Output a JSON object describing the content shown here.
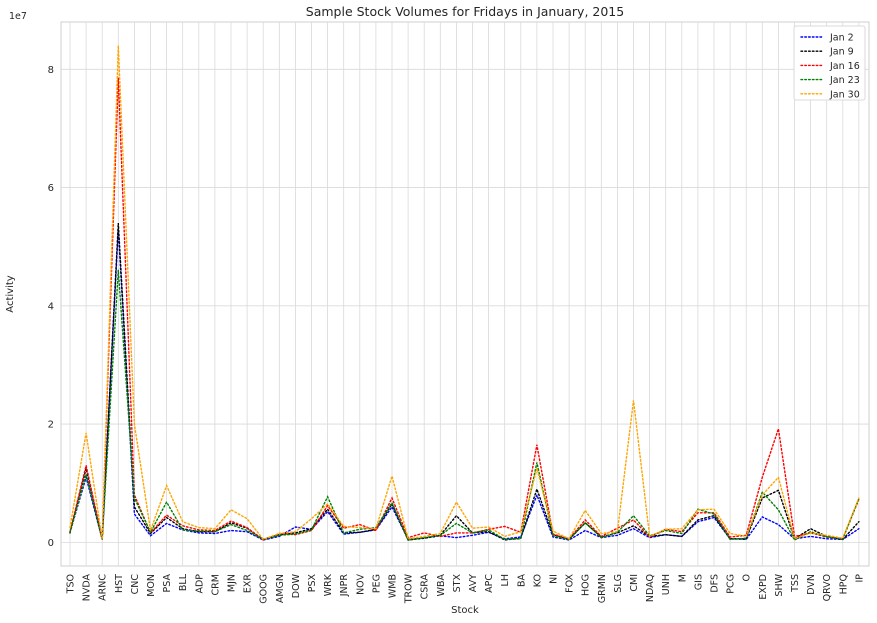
{
  "chart_data": {
    "type": "line",
    "title": "Sample Stock Volumes for Fridays in January, 2015",
    "xlabel": "Stock",
    "ylabel": "Activity",
    "y_offset_label": "1e7",
    "ylim": [
      -4000000,
      88000000
    ],
    "yticks": [
      0,
      20000000,
      40000000,
      60000000,
      80000000
    ],
    "ytick_labels": [
      "0",
      "2",
      "4",
      "6",
      "8"
    ],
    "grid": true,
    "legend_position": "top-right",
    "categories": [
      "TSO",
      "NVDA",
      "ARNC",
      "HST",
      "CNC",
      "MON",
      "PSA",
      "BLL",
      "ADP",
      "CRM",
      "MJN",
      "EXR",
      "GOOG",
      "AMGN",
      "DOW",
      "PSX",
      "WRK",
      "JNPR",
      "NOV",
      "PEG",
      "WMB",
      "TROW",
      "CSRA",
      "WBA",
      "STX",
      "AVY",
      "APC",
      "LH",
      "BA",
      "KO",
      "NI",
      "FOX",
      "HOG",
      "GRMN",
      "SLG",
      "CMI",
      "NDAQ",
      "UNH",
      "M",
      "GIS",
      "DFS",
      "PCG",
      "O",
      "EXPD",
      "SHW",
      "TSS",
      "DVN",
      "QRVO",
      "HPQ",
      "IP"
    ],
    "series": [
      {
        "name": "Jan 2",
        "color": "#0000ff",
        "values": [
          1.7,
          11.0,
          0.5,
          53.0,
          4.8,
          1.1,
          3.2,
          2.1,
          1.6,
          1.5,
          2.0,
          1.8,
          0.4,
          1.0,
          2.6,
          2.2,
          5.2,
          1.4,
          1.7,
          2.1,
          6.0,
          0.5,
          0.7,
          1.1,
          0.8,
          1.2,
          1.7,
          0.6,
          0.9,
          8.0,
          0.9,
          0.4,
          2.0,
          0.8,
          1.2,
          2.3,
          0.8,
          1.3,
          1.0,
          3.5,
          4.2,
          0.6,
          0.5,
          4.3,
          3.0,
          0.6,
          1.0,
          0.6,
          0.5,
          2.3
        ]
      },
      {
        "name": "Jan 9",
        "color": "#000000",
        "values": [
          1.6,
          12.5,
          0.5,
          54.0,
          6.0,
          1.5,
          4.2,
          2.3,
          1.8,
          1.8,
          3.3,
          2.4,
          0.5,
          1.3,
          1.6,
          2.3,
          5.6,
          1.6,
          1.7,
          2.2,
          6.5,
          0.4,
          0.7,
          1.2,
          4.5,
          1.6,
          1.8,
          0.4,
          0.7,
          9.0,
          1.3,
          0.5,
          3.3,
          0.9,
          1.6,
          2.8,
          1.0,
          1.3,
          1.0,
          3.8,
          4.5,
          0.6,
          0.6,
          7.5,
          8.8,
          0.6,
          2.3,
          1.0,
          0.5,
          3.5
        ]
      },
      {
        "name": "Jan 16",
        "color": "#ff0000",
        "values": [
          1.8,
          13.0,
          0.6,
          78.5,
          8.0,
          1.6,
          4.6,
          2.8,
          2.1,
          2.0,
          3.6,
          2.5,
          0.4,
          1.5,
          1.3,
          2.0,
          6.2,
          2.4,
          3.0,
          2.0,
          7.5,
          0.8,
          1.6,
          1.0,
          1.6,
          1.6,
          2.2,
          2.7,
          1.7,
          16.5,
          1.4,
          0.6,
          3.8,
          1.0,
          2.4,
          3.8,
          0.9,
          2.2,
          1.8,
          5.0,
          5.0,
          0.9,
          1.2,
          11.0,
          19.2,
          1.0,
          1.6,
          0.9,
          0.6,
          7.3
        ]
      },
      {
        "name": "Jan 23",
        "color": "#008000",
        "values": [
          1.7,
          11.5,
          0.5,
          46.0,
          7.5,
          1.7,
          6.8,
          2.1,
          1.9,
          1.8,
          3.0,
          2.0,
          0.5,
          1.2,
          1.4,
          2.1,
          7.7,
          1.6,
          2.2,
          2.5,
          6.7,
          0.4,
          0.8,
          1.2,
          3.2,
          1.6,
          2.1,
          0.5,
          0.6,
          13.5,
          1.1,
          0.5,
          3.3,
          0.8,
          1.7,
          4.5,
          1.1,
          2.0,
          1.5,
          5.6,
          4.8,
          0.5,
          0.7,
          8.5,
          5.5,
          0.4,
          1.8,
          0.9,
          0.6,
          7.4
        ]
      },
      {
        "name": "Jan 30",
        "color": "#ffa500",
        "values": [
          2.5,
          18.5,
          0.5,
          84.0,
          20.0,
          2.0,
          9.6,
          3.5,
          2.5,
          2.3,
          5.5,
          4.0,
          0.5,
          1.5,
          1.8,
          4.0,
          6.5,
          2.7,
          2.5,
          2.3,
          11.2,
          0.6,
          1.0,
          1.5,
          6.8,
          2.4,
          2.6,
          1.0,
          1.8,
          12.5,
          1.9,
          0.6,
          5.4,
          1.5,
          1.8,
          24.0,
          1.0,
          2.2,
          2.3,
          5.5,
          5.6,
          1.5,
          1.0,
          8.0,
          11.0,
          0.6,
          1.6,
          1.2,
          0.7,
          7.5
        ]
      }
    ],
    "values_unit_multiplier": 1000000
  }
}
